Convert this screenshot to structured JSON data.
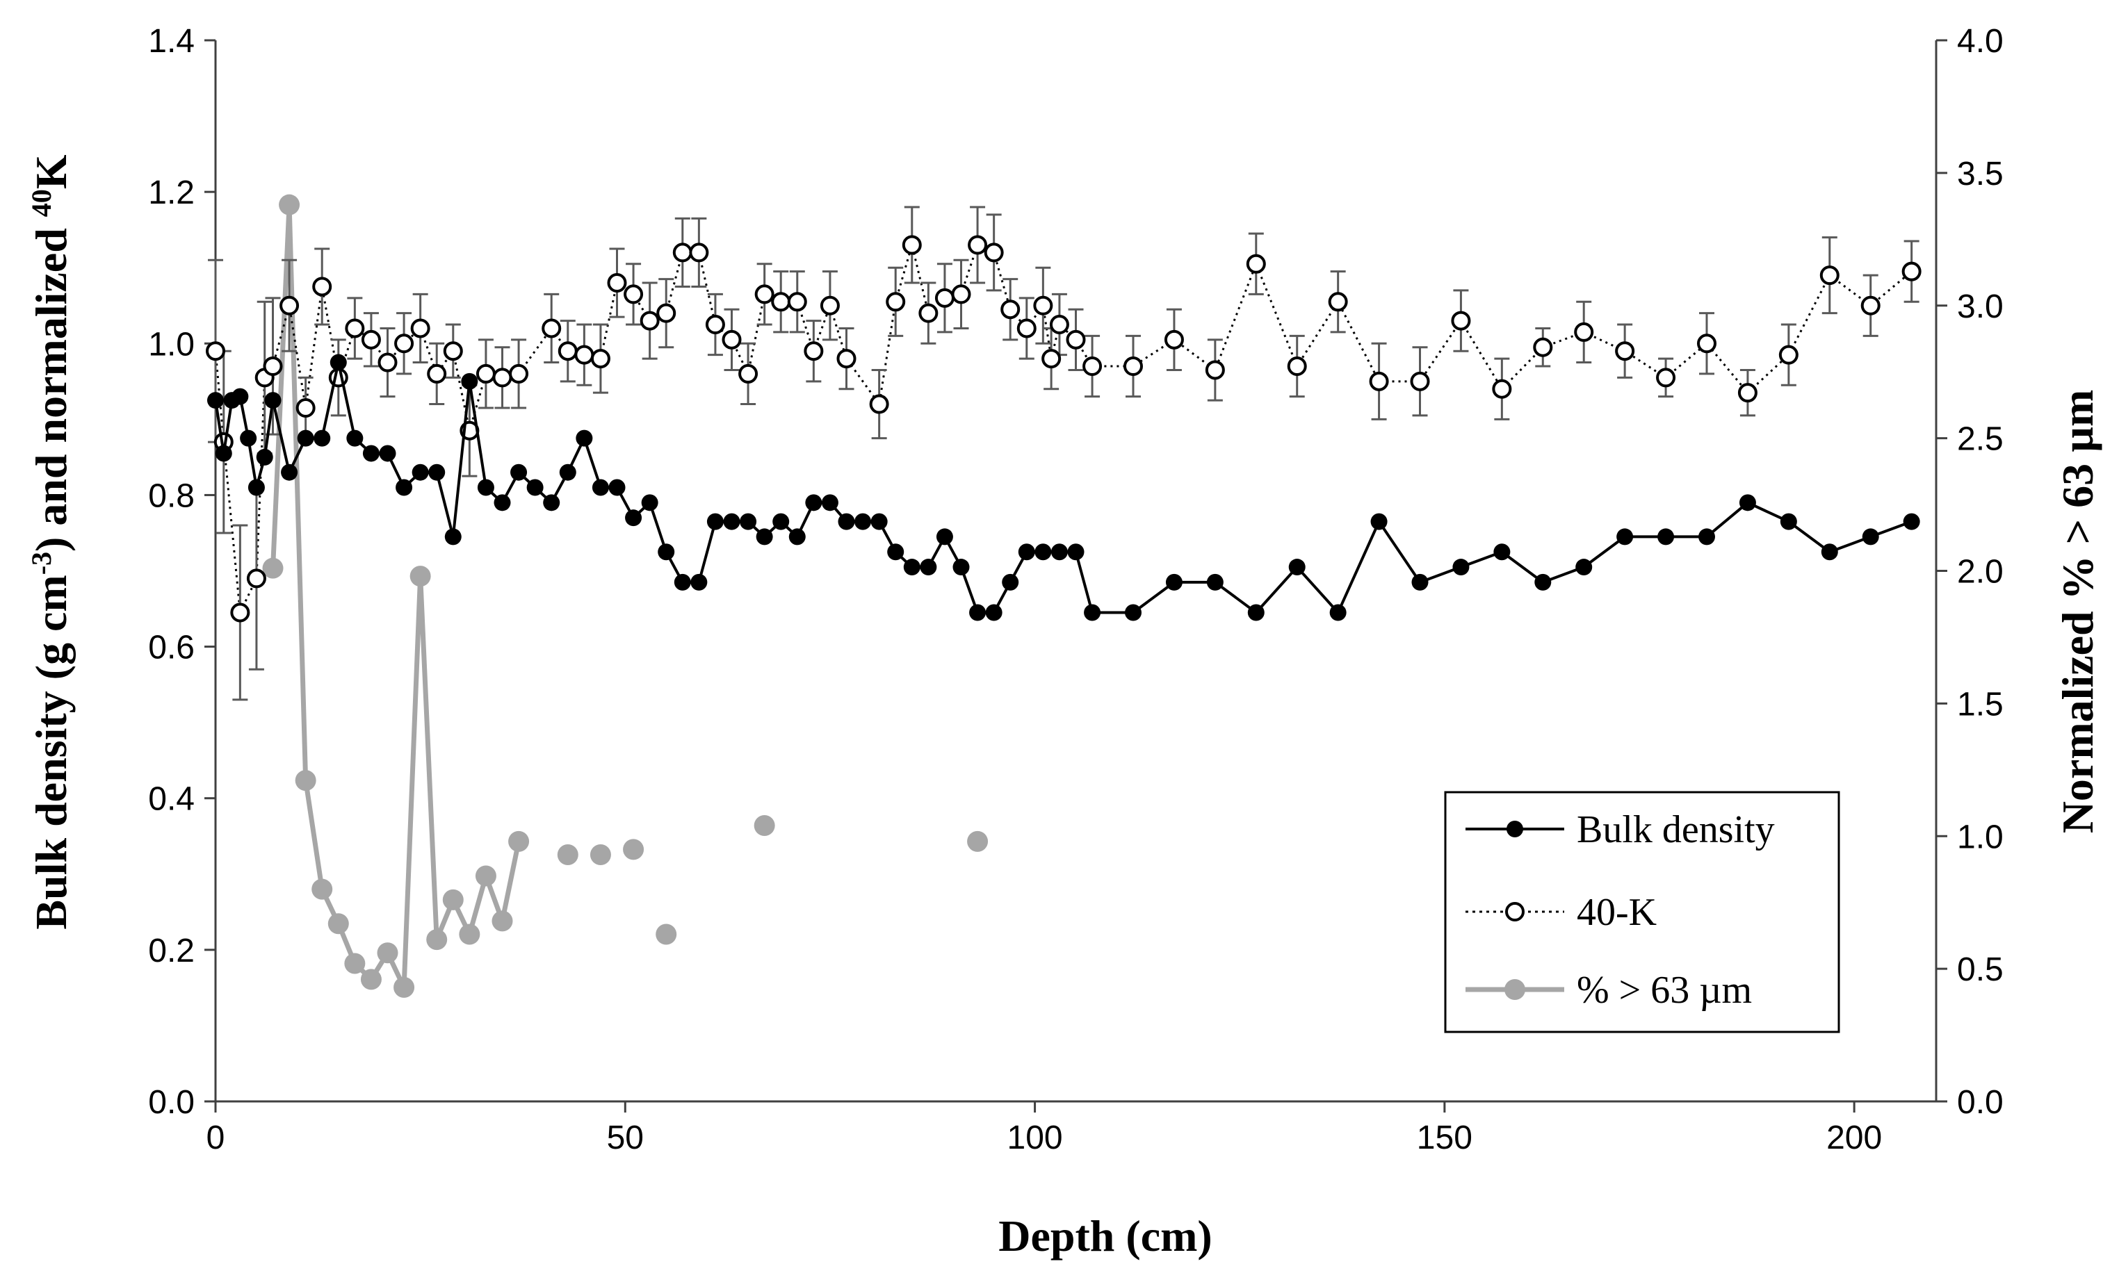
{
  "chart_data": {
    "type": "line",
    "xlabel": "Depth (cm)",
    "ylabel_left": {
      "main": "Bulk density (g cm",
      "sup1": "-3",
      "mid": ") and normalized ",
      "sup2": "40",
      "end": "K"
    },
    "ylabel_right": "Normalized % > 63 µm",
    "xlim": [
      0,
      210
    ],
    "ylim_left": [
      0,
      1.4
    ],
    "ylim_right": [
      0,
      4.0
    ],
    "xticks": [
      "0",
      "50",
      "100",
      "150",
      "200"
    ],
    "yticks_left": [
      "0.0",
      "0.2",
      "0.4",
      "0.6",
      "0.8",
      "1.0",
      "1.2",
      "1.4"
    ],
    "yticks_right": [
      "0.0",
      "0.5",
      "1.0",
      "1.5",
      "2.0",
      "2.5",
      "3.0",
      "3.5",
      "4.0"
    ],
    "colors": {
      "bulk": "#000000",
      "k40": "#000000",
      "coarse": "#a6a6a6",
      "errbar": "#595959"
    },
    "legend": [
      "Bulk density",
      "40-K",
      "% > 63 µm"
    ],
    "series": [
      {
        "name": "Bulk density",
        "axis": "left",
        "x": [
          0,
          1,
          2,
          3,
          4,
          5,
          6,
          7,
          9,
          11,
          13,
          15,
          17,
          19,
          21,
          23,
          25,
          27,
          29,
          31,
          33,
          35,
          37,
          39,
          41,
          43,
          45,
          47,
          49,
          51,
          53,
          55,
          57,
          59,
          61,
          63,
          65,
          67,
          69,
          71,
          73,
          75,
          77,
          79,
          81,
          83,
          85,
          87,
          89,
          91,
          93,
          95,
          97,
          99,
          101,
          103,
          105,
          107,
          112,
          117,
          122,
          127,
          132,
          137,
          142,
          147,
          152,
          157,
          162,
          167,
          172,
          177,
          182,
          187,
          192,
          197,
          202,
          207
        ],
        "y": [
          0.925,
          0.855,
          0.925,
          0.93,
          0.875,
          0.81,
          0.85,
          0.925,
          0.83,
          0.875,
          0.875,
          0.975,
          0.875,
          0.855,
          0.855,
          0.81,
          0.83,
          0.83,
          0.745,
          0.95,
          0.81,
          0.79,
          0.83,
          0.81,
          0.79,
          0.83,
          0.875,
          0.81,
          0.81,
          0.77,
          0.79,
          0.725,
          0.685,
          0.685,
          0.765,
          0.765,
          0.765,
          0.745,
          0.765,
          0.745,
          0.79,
          0.79,
          0.765,
          0.765,
          0.765,
          0.725,
          0.705,
          0.705,
          0.745,
          0.705,
          0.645,
          0.645,
          0.685,
          0.725,
          0.725,
          0.725,
          0.725,
          0.645,
          0.645,
          0.685,
          0.685,
          0.645,
          0.705,
          0.645,
          0.765,
          0.685,
          0.705,
          0.725,
          0.685,
          0.705,
          0.745,
          0.745,
          0.745,
          0.79,
          0.765,
          0.725,
          0.745,
          0.765
        ]
      },
      {
        "name": "40-K",
        "axis": "left",
        "x": [
          0,
          1,
          3,
          5,
          6,
          7,
          9,
          11,
          13,
          15,
          17,
          19,
          21,
          23,
          25,
          27,
          29,
          31,
          33,
          35,
          37,
          41,
          43,
          45,
          47,
          49,
          51,
          53,
          55,
          57,
          59,
          61,
          63,
          65,
          67,
          69,
          71,
          73,
          75,
          77,
          81,
          83,
          85,
          87,
          89,
          91,
          93,
          95,
          97,
          99,
          101,
          102,
          103,
          105,
          107,
          112,
          117,
          122,
          127,
          132,
          137,
          142,
          147,
          152,
          157,
          162,
          167,
          172,
          177,
          182,
          187,
          192,
          197,
          202,
          207
        ],
        "y": [
          0.99,
          0.87,
          0.645,
          0.69,
          0.955,
          0.97,
          1.05,
          0.915,
          1.075,
          0.955,
          1.02,
          1.005,
          0.975,
          1.0,
          1.02,
          0.96,
          0.99,
          0.885,
          0.96,
          0.955,
          0.96,
          1.02,
          0.99,
          0.985,
          0.98,
          1.08,
          1.065,
          1.03,
          1.04,
          1.12,
          1.12,
          1.025,
          1.005,
          0.96,
          1.065,
          1.055,
          1.055,
          0.99,
          1.05,
          0.98,
          0.92,
          1.055,
          1.13,
          1.04,
          1.06,
          1.065,
          1.13,
          1.12,
          1.045,
          1.02,
          1.05,
          0.98,
          1.025,
          1.005,
          0.97,
          0.97,
          1.005,
          0.965,
          1.105,
          0.97,
          1.055,
          0.95,
          0.95,
          1.03,
          0.94,
          0.995,
          1.015,
          0.99,
          0.955,
          1.0,
          0.935,
          0.985,
          1.09,
          1.05,
          1.095
        ],
        "err": [
          0.12,
          0.12,
          0.115,
          0.12,
          0.1,
          0.09,
          0.06,
          0.04,
          0.05,
          0.05,
          0.04,
          0.035,
          0.045,
          0.04,
          0.045,
          0.04,
          0.035,
          0.06,
          0.045,
          0.04,
          0.045,
          0.045,
          0.04,
          0.04,
          0.045,
          0.045,
          0.04,
          0.05,
          0.045,
          0.045,
          0.045,
          0.04,
          0.04,
          0.04,
          0.04,
          0.04,
          0.04,
          0.04,
          0.045,
          0.04,
          0.045,
          0.045,
          0.05,
          0.04,
          0.045,
          0.045,
          0.05,
          0.05,
          0.04,
          0.04,
          0.05,
          0.04,
          0.04,
          0.04,
          0.04,
          0.04,
          0.04,
          0.04,
          0.04,
          0.04,
          0.04,
          0.05,
          0.045,
          0.04,
          0.04,
          0.025,
          0.04,
          0.035,
          0.025,
          0.04,
          0.03,
          0.04,
          0.05,
          0.04,
          0.04
        ]
      },
      {
        "name": "% > 63 µm",
        "axis": "right",
        "segments": [
          {
            "x": [
              7,
              9,
              11,
              13,
              15,
              17,
              19,
              21,
              23,
              25,
              27,
              29,
              31,
              33,
              35,
              37
            ],
            "y": [
              2.01,
              3.38,
              1.21,
              0.8,
              0.67,
              0.52,
              0.46,
              0.56,
              0.43,
              1.98,
              0.61,
              0.76,
              0.63,
              0.85,
              0.68,
              0.98
            ]
          }
        ],
        "points": {
          "x": [
            43,
            47,
            51,
            55,
            67,
            93
          ],
          "y": [
            0.93,
            0.93,
            0.95,
            0.63,
            1.04,
            0.98
          ]
        }
      }
    ]
  }
}
